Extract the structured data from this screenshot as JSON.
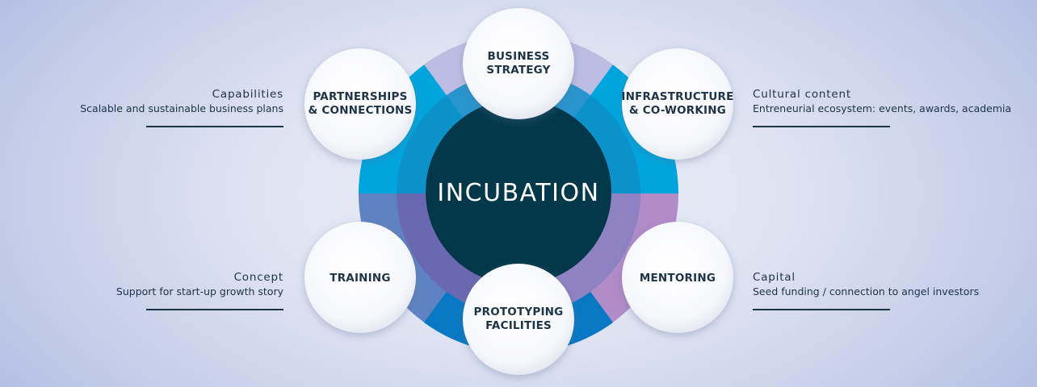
{
  "center": {
    "label": "INCUBATION"
  },
  "nodes": {
    "business_strategy": [
      "BUSINESS",
      "STRATEGY"
    ],
    "partnerships": [
      "PARTNERSHIPS",
      "& CONNECTIONS"
    ],
    "infrastructure": [
      "INFRASTRUCTURE",
      "& CO-WORKING"
    ],
    "training": [
      "TRAINING"
    ],
    "mentoring": [
      "MENTORING"
    ],
    "prototyping": [
      "PROTOTYPING",
      "FACILITIES"
    ]
  },
  "side_notes": {
    "capabilities": {
      "title": "Capabilities",
      "text": "Scalable and sustainable business plans"
    },
    "concept": {
      "title": "Concept",
      "text": "Support for start-up growth story"
    },
    "cultural": {
      "title": "Cultural content",
      "text": "Entreneurial ecosystem: events, awards, academia"
    },
    "capital": {
      "title": "Capital",
      "text": "Seed funding / connection to angel investors"
    }
  },
  "colors": {
    "center": "#03384a",
    "top_ring": "#00a5de",
    "top_ring_inner": "#0e8ec8",
    "left_bottom_ring": "#5f83c2",
    "left_bottom_inner": "#6a68b0",
    "right_bottom_ring": "#b18cc8",
    "right_bottom_inner": "#8f82c2",
    "lavender_wedge": "#bdbde3",
    "dark_blue_wedge": "#0878c4",
    "node_text": "#1d3346"
  }
}
